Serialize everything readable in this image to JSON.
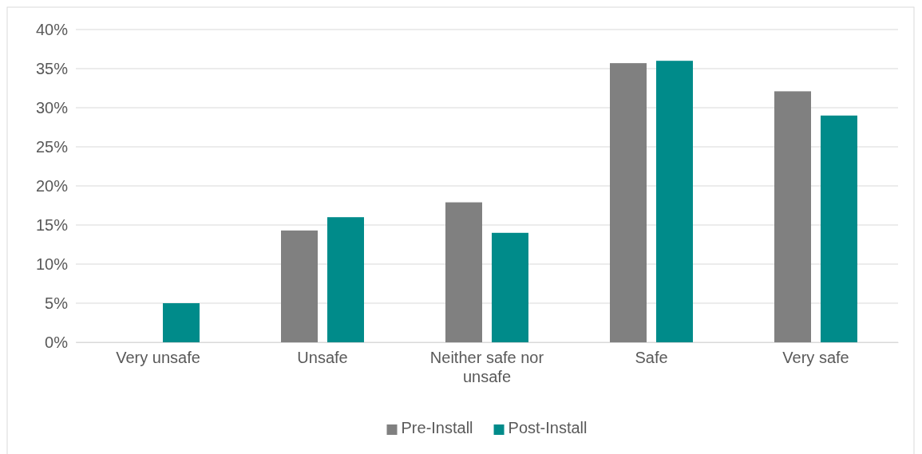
{
  "chart_data": {
    "type": "bar",
    "categories": [
      "Very unsafe",
      "Unsafe",
      "Neither safe nor unsafe",
      "Safe",
      "Very safe"
    ],
    "series": [
      {
        "name": "Pre-Install",
        "color": "#808080",
        "values": [
          0,
          14.3,
          17.9,
          35.7,
          32.1
        ]
      },
      {
        "name": "Post-Install",
        "color": "#008b8a",
        "values": [
          5,
          16,
          14,
          36,
          29
        ]
      }
    ],
    "ylim": [
      0,
      40
    ],
    "yticks": [
      {
        "value": 0,
        "label": "0%"
      },
      {
        "value": 5,
        "label": "5%"
      },
      {
        "value": 10,
        "label": "10%"
      },
      {
        "value": 15,
        "label": "15%"
      },
      {
        "value": 20,
        "label": "20%"
      },
      {
        "value": 25,
        "label": "25%"
      },
      {
        "value": 30,
        "label": "30%"
      },
      {
        "value": 35,
        "label": "35%"
      },
      {
        "value": 40,
        "label": "40%"
      }
    ],
    "grid": "y",
    "legend": "bottom"
  }
}
